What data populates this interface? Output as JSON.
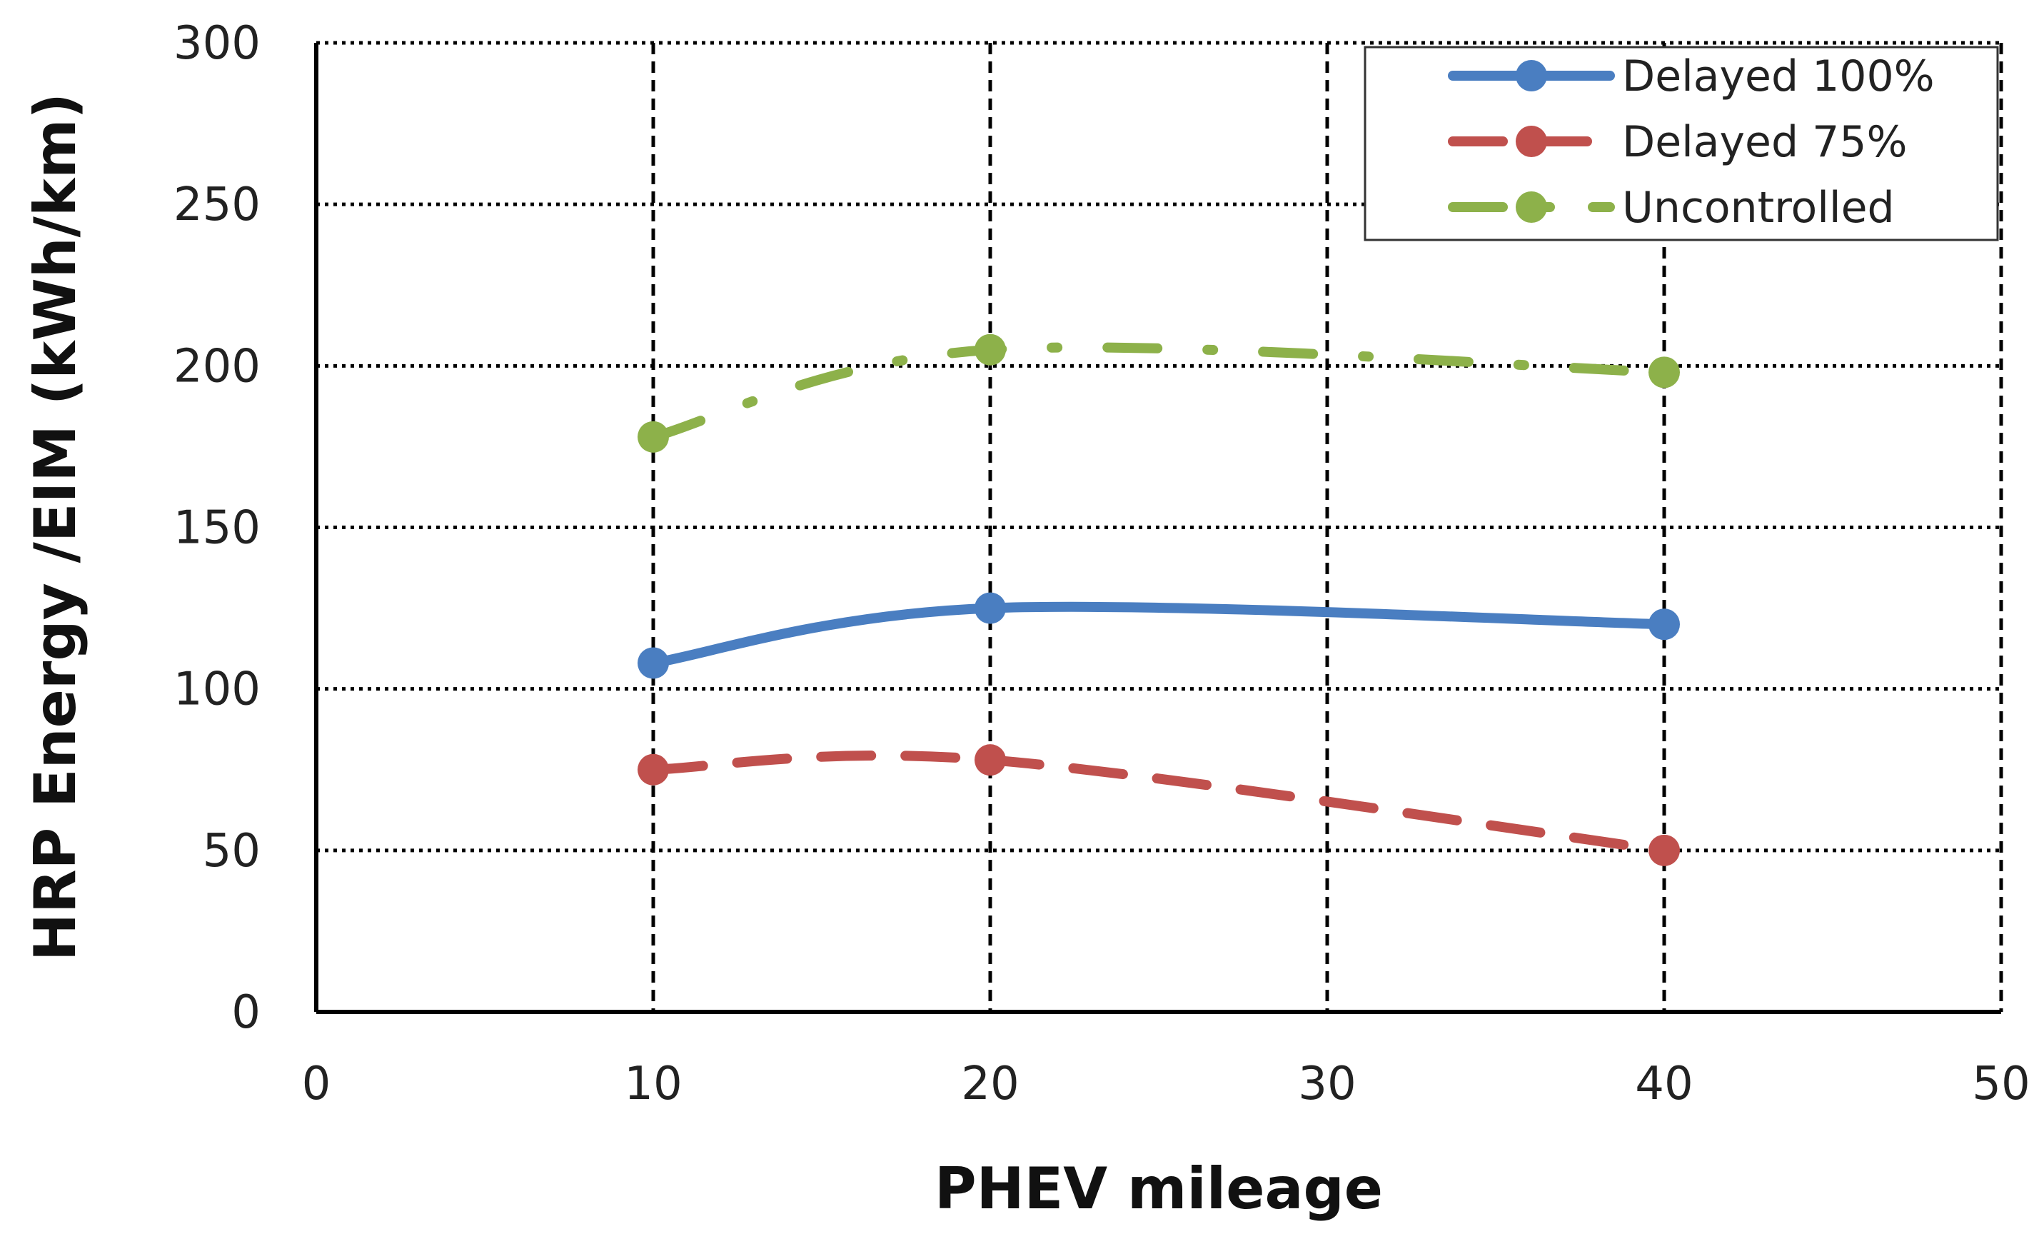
{
  "chart_data": {
    "type": "line",
    "title": "",
    "xlabel": "PHEV mileage",
    "ylabel": "HRP Energy /EIM (kWh/km)",
    "xlim": [
      0,
      50
    ],
    "ylim": [
      0,
      300
    ],
    "xticks": [
      0,
      10,
      20,
      30,
      40,
      50
    ],
    "yticks": [
      0,
      50,
      100,
      150,
      200,
      250,
      300
    ],
    "grid": true,
    "legend_position": "top-right",
    "x": [
      10,
      20,
      40
    ],
    "series": [
      {
        "name": "Delayed 100%",
        "values": [
          108,
          125,
          120
        ],
        "color": "#4A7EC1",
        "style": "solid"
      },
      {
        "name": "Delayed 75%",
        "values": [
          75,
          78,
          50
        ],
        "color": "#C0504D",
        "style": "dashed"
      },
      {
        "name": "Uncontrolled",
        "values": [
          178,
          205,
          198
        ],
        "color": "#8DB14A",
        "style": "dash-dot"
      }
    ]
  }
}
